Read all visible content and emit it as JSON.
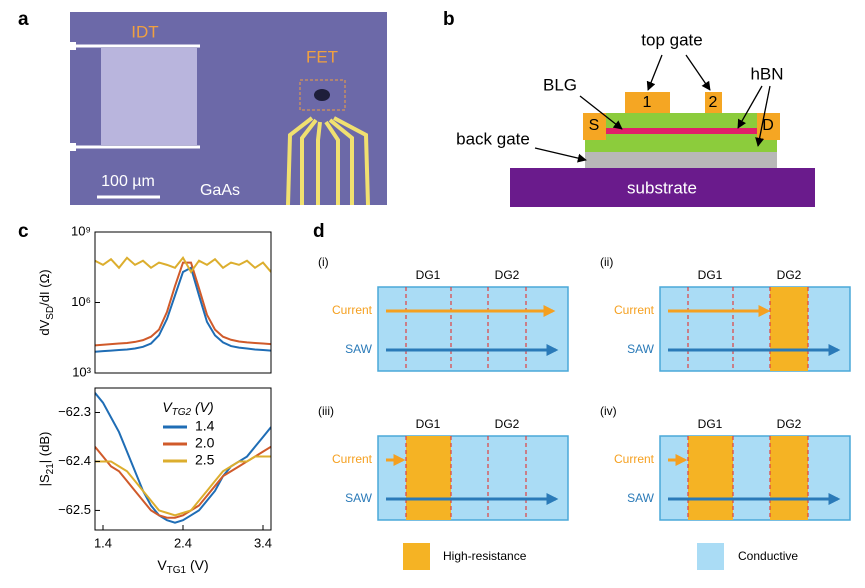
{
  "panel_a": {
    "label": "a",
    "idt": "IDT",
    "fet": "FET",
    "scale": "100 µm",
    "material": "GaAs"
  },
  "panel_b": {
    "label": "b",
    "top_gate": "top gate",
    "gate1": "1",
    "gate2": "2",
    "blg": "BLG",
    "hbn": "hBN",
    "source": "S",
    "drain": "D",
    "back_gate": "back gate",
    "substrate": "substrate"
  },
  "panel_c": {
    "label": "c"
  },
  "chart_data": [
    {
      "type": "line",
      "yscale": "log",
      "ylabel": [
        "dV",
        "SD",
        "/dI (Ω)"
      ],
      "x": [
        1.3,
        1.4,
        1.5,
        1.6,
        1.7,
        1.8,
        1.9,
        2.0,
        2.1,
        2.2,
        2.3,
        2.4,
        2.5,
        2.6,
        2.7,
        2.8,
        2.9,
        3.0,
        3.1,
        3.2,
        3.3,
        3.4,
        3.5
      ],
      "xlim": [
        1.3,
        3.5
      ],
      "ylim": [
        1000,
        1000000000
      ],
      "yticks": [
        {
          "value": 1000,
          "label": "10³"
        },
        {
          "value": 1000000,
          "label": "10⁶"
        },
        {
          "value": 1000000000,
          "label": "10⁹"
        }
      ],
      "series": [
        {
          "name": "1.4",
          "color": "#1f6db5",
          "values": [
            8000,
            8500,
            9000,
            9500,
            10000,
            11000,
            13000,
            18000,
            40000,
            200000,
            2000000,
            20000000,
            30000000,
            2000000,
            150000,
            40000,
            20000,
            14000,
            12000,
            11000,
            10000,
            9500,
            9000
          ]
        },
        {
          "name": "2.0",
          "color": "#d05a2a",
          "values": [
            15000,
            16000,
            17000,
            18000,
            19000,
            21000,
            25000,
            35000,
            70000,
            400000,
            5000000,
            50000000,
            50000000,
            4000000,
            300000,
            70000,
            35000,
            26000,
            22000,
            20000,
            19000,
            18000,
            17000
          ]
        },
        {
          "name": "2.5",
          "color": "#dcae2e",
          "values": [
            60000000,
            40000000,
            70000000,
            30000000,
            80000000,
            40000000,
            60000000,
            30000000,
            50000000,
            40000000,
            30000000,
            80000000,
            20000000,
            60000000,
            40000000,
            70000000,
            30000000,
            50000000,
            40000000,
            60000000,
            30000000,
            50000000,
            20000000
          ]
        }
      ]
    },
    {
      "type": "line",
      "ylabel": [
        "|S",
        "21",
        "| (dB)"
      ],
      "xlabel": [
        "V",
        "TG1",
        " (V)"
      ],
      "legend_title": [
        "V",
        "TG2",
        " (V)"
      ],
      "legend": "upper center",
      "x": [
        1.3,
        1.4,
        1.5,
        1.6,
        1.7,
        1.8,
        1.9,
        2.0,
        2.1,
        2.2,
        2.3,
        2.4,
        2.5,
        2.6,
        2.7,
        2.8,
        2.9,
        3.0,
        3.1,
        3.2,
        3.3,
        3.4,
        3.5
      ],
      "xlim": [
        1.3,
        3.5
      ],
      "xticks": [
        1.4,
        2.4,
        3.4
      ],
      "ylim": [
        -62.54,
        -62.25
      ],
      "yticks": [
        {
          "value": -62.3,
          "label": "−62.3"
        },
        {
          "value": -62.4,
          "label": "−62.4"
        },
        {
          "value": -62.5,
          "label": "−62.5"
        }
      ],
      "series": [
        {
          "name": "1.4",
          "color": "#1f6db5",
          "values": [
            -62.26,
            -62.28,
            -62.31,
            -62.34,
            -62.38,
            -62.42,
            -62.46,
            -62.49,
            -62.51,
            -62.52,
            -62.525,
            -62.52,
            -62.51,
            -62.5,
            -62.48,
            -62.46,
            -62.43,
            -62.41,
            -62.4,
            -62.39,
            -62.37,
            -62.35,
            -62.33
          ]
        },
        {
          "name": "2.0",
          "color": "#d05a2a",
          "values": [
            -62.37,
            -62.39,
            -62.41,
            -62.42,
            -62.44,
            -62.46,
            -62.48,
            -62.5,
            -62.51,
            -62.515,
            -62.515,
            -62.51,
            -62.5,
            -62.49,
            -62.47,
            -62.45,
            -62.43,
            -62.42,
            -62.41,
            -62.4,
            -62.39,
            -62.38,
            -62.37
          ]
        },
        {
          "name": "2.5",
          "color": "#dcae2e",
          "values": [
            -62.4,
            -62.4,
            -62.4,
            -62.41,
            -62.42,
            -62.44,
            -62.46,
            -62.48,
            -62.5,
            -62.505,
            -62.51,
            -62.505,
            -62.5,
            -62.48,
            -62.46,
            -62.44,
            -62.42,
            -62.41,
            -62.4,
            -62.4,
            -62.39,
            -62.39,
            -62.39
          ]
        }
      ]
    }
  ],
  "panel_d": {
    "label": "d",
    "subpanels": [
      {
        "label": "(i)",
        "gates": [
          "DG1",
          "DG2"
        ],
        "rows": [
          "Current",
          "SAW"
        ]
      },
      {
        "label": "(ii)",
        "gates": [
          "DG1",
          "DG2"
        ],
        "rows": [
          "Current",
          "SAW"
        ]
      },
      {
        "label": "(iii)",
        "gates": [
          "DG1",
          "DG2"
        ],
        "rows": [
          "Current",
          "SAW"
        ]
      },
      {
        "label": "(iv)",
        "gates": [
          "DG1",
          "DG2"
        ],
        "rows": [
          "Current",
          "SAW"
        ]
      }
    ],
    "legend": [
      "High-resistance",
      "Conductive"
    ]
  }
}
